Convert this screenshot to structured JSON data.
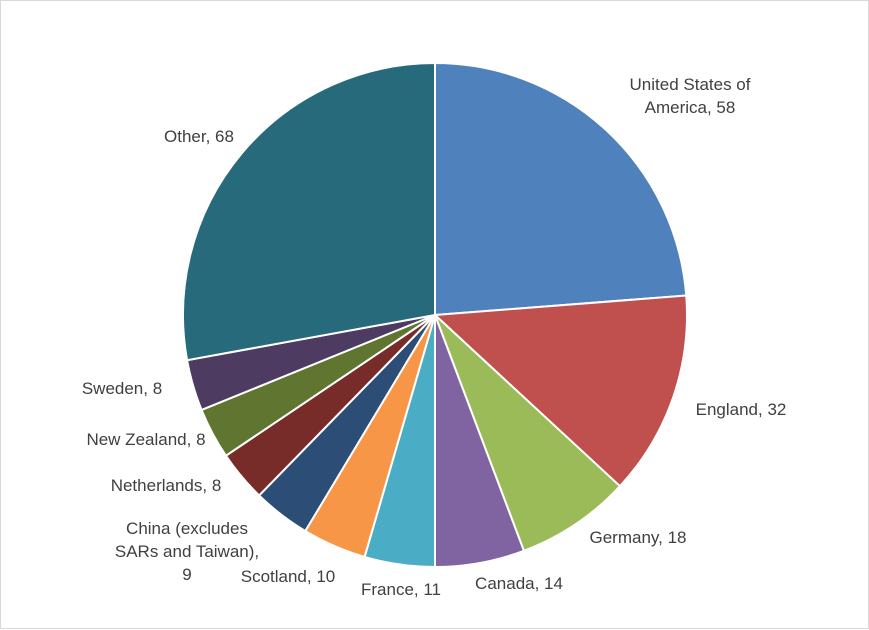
{
  "chart_data": {
    "type": "pie",
    "title": "",
    "slices": [
      {
        "label": "United States of America",
        "value": 58,
        "color": "#4f81bd",
        "label_lines": [
          "United States of",
          "America, 58"
        ]
      },
      {
        "label": "England",
        "value": 32,
        "color": "#c0504d",
        "label_lines": [
          "England, 32"
        ]
      },
      {
        "label": "Germany",
        "value": 18,
        "color": "#9bbb59",
        "label_lines": [
          "Germany, 18"
        ]
      },
      {
        "label": "Canada",
        "value": 14,
        "color": "#8064a2",
        "label_lines": [
          "Canada, 14"
        ]
      },
      {
        "label": "France",
        "value": 11,
        "color": "#4bacc6",
        "label_lines": [
          "France, 11"
        ]
      },
      {
        "label": "Scotland",
        "value": 10,
        "color": "#f79646",
        "label_lines": [
          "Scotland, 10"
        ]
      },
      {
        "label": "China (excludes SARs and Taiwan)",
        "value": 9,
        "color": "#2c4d75",
        "label_lines": [
          "China (excludes",
          "SARs and Taiwan),",
          "9"
        ]
      },
      {
        "label": "Netherlands",
        "value": 8,
        "color": "#772c2a",
        "label_lines": [
          "Netherlands, 8"
        ]
      },
      {
        "label": "New Zealand",
        "value": 8,
        "color": "#5f7530",
        "label_lines": [
          "New Zealand, 8"
        ]
      },
      {
        "label": "Sweden",
        "value": 8,
        "color": "#4d3b62",
        "label_lines": [
          "Sweden, 8"
        ]
      },
      {
        "label": "Other",
        "value": 68,
        "color": "#276a7c",
        "label_lines": [
          "Other, 68"
        ]
      }
    ],
    "legend": "none",
    "data_labels": "category name and value, outside slices"
  }
}
